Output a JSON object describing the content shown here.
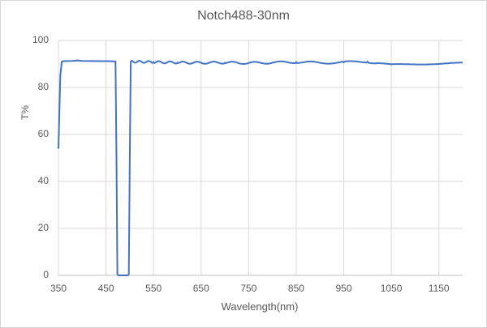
{
  "chart_data": {
    "type": "line",
    "title": "Notch488-30nm",
    "xlabel": "Wavelength(nm)",
    "ylabel": "T%",
    "xlim": [
      350,
      1200
    ],
    "ylim": [
      0,
      100
    ],
    "x_ticks": [
      "350",
      "450",
      "550",
      "650",
      "750",
      "850",
      "950",
      "1050",
      "1150"
    ],
    "y_ticks": [
      "0",
      "20",
      "40",
      "60",
      "80",
      "100"
    ],
    "grid": {
      "vertical": true,
      "horizontal": true
    },
    "legend": null,
    "line_color": "#4472c4",
    "series": [
      {
        "name": "T%",
        "x": [
          350,
          352,
          354,
          357,
          360,
          380,
          390,
          400,
          450,
          470,
          472,
          474,
          476,
          496,
          498,
          500,
          502,
          550,
          600,
          650,
          700,
          750,
          800,
          850,
          900,
          950,
          1000,
          1050,
          1100,
          1150,
          1200
        ],
        "y": [
          54,
          70,
          85,
          91,
          91.2,
          91.3,
          91.5,
          91.3,
          91.2,
          91.1,
          50,
          0.5,
          0,
          0,
          0.5,
          50,
          91,
          90.8,
          90.6,
          90.5,
          90.6,
          90.4,
          90.6,
          90.8,
          90.5,
          90.7,
          91.0,
          89.8,
          89.9,
          90.0,
          90.5
        ]
      }
    ]
  }
}
